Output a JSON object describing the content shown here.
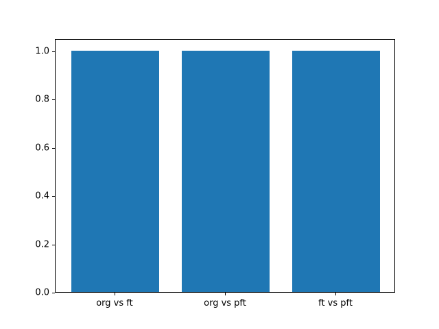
{
  "chart_data": {
    "type": "bar",
    "title": "",
    "xlabel": "",
    "ylabel": "",
    "categories": [
      "org vs ft",
      "org vs pft",
      "ft vs pft"
    ],
    "values": [
      1.0,
      1.0,
      1.0
    ],
    "ylim": [
      0,
      1.05
    ],
    "xlim": [
      -0.54,
      2.54
    ],
    "yticks": [
      0.0,
      0.2,
      0.4,
      0.6,
      0.8,
      1.0
    ],
    "ytick_labels": [
      "0.0",
      "0.2",
      "0.4",
      "0.6",
      "0.8",
      "1.0"
    ],
    "bar_width": 0.8,
    "bar_color": "#1f77b4",
    "grid": false,
    "legend": false,
    "background": "#ffffff",
    "spine_color": "#000000"
  }
}
